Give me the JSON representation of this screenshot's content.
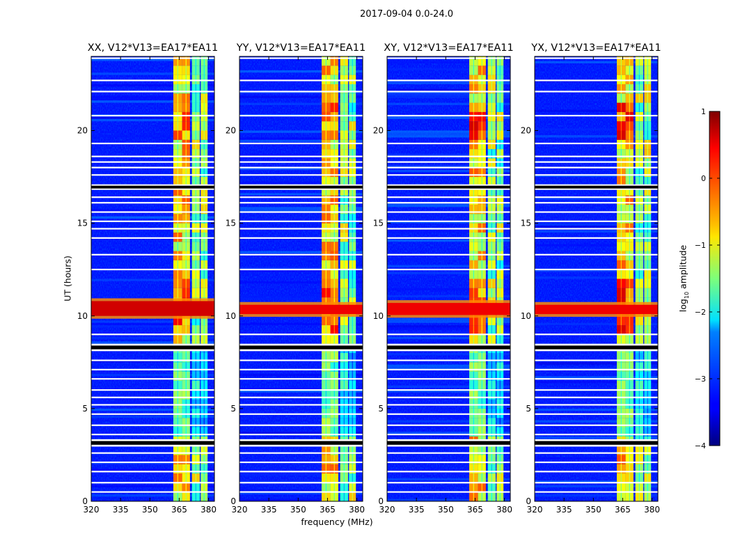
{
  "figure": {
    "suptitle": "2017-09-04 0.0-24.0",
    "ylabel": "UT (hours)",
    "xlabel": "frequency (MHz)",
    "colorbar": {
      "label_prefix": "log",
      "label_sub": "10",
      "label_suffix": " amplitude",
      "range": [
        -4,
        1
      ],
      "ticks": [
        {
          "value": 1,
          "label": "1"
        },
        {
          "value": 0,
          "label": "0"
        },
        {
          "value": -1,
          "label": "−1"
        },
        {
          "value": -2,
          "label": "−2"
        },
        {
          "value": -3,
          "label": "−3"
        },
        {
          "value": -4,
          "label": "−4"
        }
      ],
      "colormap": "jet"
    }
  },
  "chart_data": [
    {
      "type": "heatmap",
      "title": "XX, V12*V13=EA17*EA11",
      "xlim": [
        320,
        383
      ],
      "ylim": [
        0,
        24
      ],
      "xticks": [
        {
          "value": 320,
          "label": "320"
        },
        {
          "value": 335,
          "label": "335"
        },
        {
          "value": 350,
          "label": "350"
        },
        {
          "value": 365,
          "label": "365"
        },
        {
          "value": 380,
          "label": "380"
        }
      ],
      "yticks": [
        {
          "value": 0,
          "label": "0"
        },
        {
          "value": 5,
          "label": "5"
        },
        {
          "value": 10,
          "label": "10"
        },
        {
          "value": 15,
          "label": "15"
        },
        {
          "value": 20,
          "label": "20"
        }
      ],
      "rfi_bands_mhz": [
        [
          362,
          366.5
        ],
        [
          366.5,
          370.5
        ],
        [
          371.5,
          375.5
        ],
        [
          376,
          379.5
        ]
      ],
      "strong_rfi_hours": [
        10.0,
        10.8
      ],
      "background_log_amp": -3.3,
      "flagged_hours": [
        [
          2.95,
          3.35
        ],
        [
          8.1,
          8.5
        ],
        [
          16.8,
          17.1
        ]
      ]
    },
    {
      "type": "heatmap",
      "title": "YY, V12*V13=EA17*EA11",
      "xlim": [
        320,
        383
      ],
      "ylim": [
        0,
        24
      ],
      "xticks": [
        {
          "value": 320,
          "label": "320"
        },
        {
          "value": 335,
          "label": "335"
        },
        {
          "value": 350,
          "label": "350"
        },
        {
          "value": 365,
          "label": "365"
        },
        {
          "value": 380,
          "label": "380"
        }
      ],
      "yticks": [
        {
          "value": 0,
          "label": "0"
        },
        {
          "value": 5,
          "label": "5"
        },
        {
          "value": 10,
          "label": "10"
        },
        {
          "value": 15,
          "label": "15"
        },
        {
          "value": 20,
          "label": "20"
        }
      ],
      "rfi_bands_mhz": [
        [
          362,
          366.5
        ],
        [
          366.5,
          370.5
        ],
        [
          371.5,
          375.5
        ],
        [
          376,
          379.5
        ]
      ],
      "strong_rfi_hours": [
        10.1,
        10.6
      ],
      "background_log_amp": -3.3,
      "flagged_hours": [
        [
          2.95,
          3.35
        ],
        [
          8.1,
          8.5
        ],
        [
          16.8,
          17.1
        ]
      ]
    },
    {
      "type": "heatmap",
      "title": "XY, V12*V13=EA17*EA11",
      "xlim": [
        320,
        383
      ],
      "ylim": [
        0,
        24
      ],
      "xticks": [
        {
          "value": 320,
          "label": "320"
        },
        {
          "value": 335,
          "label": "335"
        },
        {
          "value": 350,
          "label": "350"
        },
        {
          "value": 365,
          "label": "365"
        },
        {
          "value": 380,
          "label": "380"
        }
      ],
      "yticks": [
        {
          "value": 0,
          "label": "0"
        },
        {
          "value": 5,
          "label": "5"
        },
        {
          "value": 10,
          "label": "10"
        },
        {
          "value": 15,
          "label": "15"
        },
        {
          "value": 20,
          "label": "20"
        }
      ],
      "rfi_bands_mhz": [
        [
          362,
          366.5
        ],
        [
          366.5,
          370.5
        ],
        [
          371.5,
          375.5
        ],
        [
          376,
          379.5
        ]
      ],
      "strong_rfi_hours": [
        10.05,
        10.7
      ],
      "background_log_amp": -3.3,
      "flagged_hours": [
        [
          2.95,
          3.35
        ],
        [
          8.1,
          8.5
        ],
        [
          16.8,
          17.1
        ]
      ]
    },
    {
      "type": "heatmap",
      "title": "YX, V12*V13=EA17*EA11",
      "xlim": [
        320,
        383
      ],
      "ylim": [
        0,
        24
      ],
      "xticks": [
        {
          "value": 320,
          "label": "320"
        },
        {
          "value": 335,
          "label": "335"
        },
        {
          "value": 350,
          "label": "350"
        },
        {
          "value": 365,
          "label": "365"
        },
        {
          "value": 380,
          "label": "380"
        }
      ],
      "yticks": [
        {
          "value": 0,
          "label": "0"
        },
        {
          "value": 5,
          "label": "5"
        },
        {
          "value": 10,
          "label": "10"
        },
        {
          "value": 15,
          "label": "15"
        },
        {
          "value": 20,
          "label": "20"
        }
      ],
      "rfi_bands_mhz": [
        [
          362,
          366.5
        ],
        [
          366.5,
          370.5
        ],
        [
          371.5,
          375.5
        ],
        [
          376,
          379.5
        ]
      ],
      "strong_rfi_hours": [
        10.1,
        10.6
      ],
      "background_log_amp": -3.3,
      "flagged_hours": [
        [
          2.95,
          3.35
        ],
        [
          8.1,
          8.5
        ],
        [
          16.8,
          17.1
        ]
      ]
    }
  ]
}
